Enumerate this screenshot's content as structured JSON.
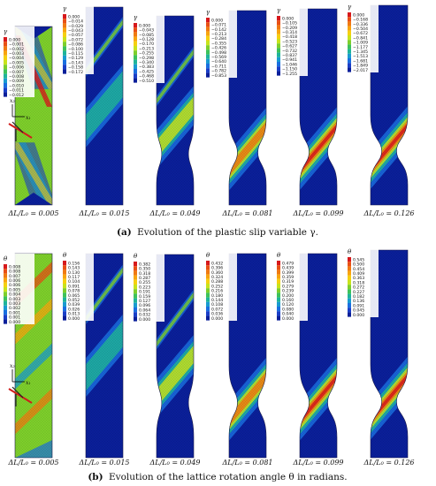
{
  "rows": [
    {
      "id": "a",
      "caption_prefix": "(a)",
      "caption_text": "Evolution of the plastic slip variable γ.",
      "var": "γ",
      "panels": [
        {
          "label": "ΔL/L₀ = 0.005",
          "legend": [
            "0.000",
            "−0.001",
            "−0.002",
            "−0.003",
            "−0.004",
            "−0.005",
            "−0.006",
            "−0.007",
            "−0.008",
            "−0.009",
            "−0.010",
            "−0.011",
            "−0.012"
          ]
        },
        {
          "label": "ΔL/L₀ = 0.015",
          "legend": [
            "0.000",
            "−0.014",
            "−0.029",
            "−0.043",
            "−0.057",
            "−0.072",
            "−0.086",
            "−0.100",
            "−0.115",
            "−0.129",
            "−0.143",
            "−0.158",
            "−0.172"
          ]
        },
        {
          "label": "ΔL/L₀ = 0.049",
          "legend": [
            "0.000",
            "−0.043",
            "−0.085",
            "−0.128",
            "−0.170",
            "−0.213",
            "−0.255",
            "−0.298",
            "−0.340",
            "−0.383",
            "−0.425",
            "−0.468",
            "−0.510"
          ]
        },
        {
          "label": "ΔL/L₀ = 0.081",
          "legend": [
            "0.000",
            "−0.071",
            "−0.142",
            "−0.213",
            "−0.284",
            "−0.355",
            "−0.426",
            "−0.498",
            "−0.569",
            "−0.640",
            "−0.711",
            "−0.782",
            "−0.853"
          ]
        },
        {
          "label": "ΔL/L₀ = 0.099",
          "legend": [
            "0.000",
            "−0.105",
            "−0.209",
            "−0.314",
            "−0.418",
            "−0.523",
            "−0.627",
            "−0.732",
            "−0.837",
            "−0.941",
            "−1.046",
            "−1.150",
            "−1.255"
          ]
        },
        {
          "label": "ΔL/L₀ = 0.126",
          "legend": [
            "0.000",
            "−0.168",
            "−0.336",
            "−0.504",
            "−0.672",
            "−0.841",
            "−1.009",
            "−1.177",
            "−1.345",
            "−1.513",
            "−1.681",
            "−1.849",
            "−2.017"
          ]
        }
      ]
    },
    {
      "id": "b",
      "caption_prefix": "(b)",
      "caption_text": "Evolution of the lattice rotation angle θ in radians.",
      "var": "θ",
      "panels": [
        {
          "label": "ΔL/L₀ = 0.005",
          "legend": [
            "0.008",
            "0.008",
            "0.007",
            "0.006",
            "0.006",
            "0.005",
            "0.004",
            "0.003",
            "0.003",
            "0.002",
            "0.001",
            "0.001",
            "0.000"
          ]
        },
        {
          "label": "ΔL/L₀ = 0.015",
          "legend": [
            "0.156",
            "0.143",
            "0.130",
            "0.117",
            "0.104",
            "0.091",
            "0.078",
            "0.065",
            "0.052",
            "0.039",
            "0.026",
            "0.013",
            "0.000"
          ]
        },
        {
          "label": "ΔL/L₀ = 0.049",
          "legend": [
            "0.382",
            "0.350",
            "0.318",
            "0.287",
            "0.255",
            "0.223",
            "0.191",
            "0.159",
            "0.127",
            "0.096",
            "0.064",
            "0.032",
            "0.000"
          ]
        },
        {
          "label": "ΔL/L₀ = 0.081",
          "legend": [
            "0.432",
            "0.396",
            "0.360",
            "0.324",
            "0.288",
            "0.252",
            "0.216",
            "0.180",
            "0.144",
            "0.108",
            "0.072",
            "0.036",
            "0.000"
          ]
        },
        {
          "label": "ΔL/L₀ = 0.099",
          "legend": [
            "0.479",
            "0.439",
            "0.399",
            "0.359",
            "0.319",
            "0.279",
            "0.239",
            "0.200",
            "0.160",
            "0.120",
            "0.080",
            "0.040",
            "0.000"
          ]
        },
        {
          "label": "ΔL/L₀ = 0.126",
          "legend": [
            "0.545",
            "0.500",
            "0.454",
            "0.409",
            "0.363",
            "0.318",
            "0.272",
            "0.227",
            "0.182",
            "0.136",
            "0.091",
            "0.045",
            "0.000"
          ]
        }
      ]
    }
  ],
  "axes": {
    "x": "x₁",
    "y": "x₂"
  },
  "palette": [
    "#d7191c",
    "#e85016",
    "#f07a12",
    "#f8a50e",
    "#f5d010",
    "#c8e31c",
    "#7ecf2b",
    "#3ec25a",
    "#1fb49a",
    "#1a9bd0",
    "#1a6fe0",
    "#1a3fc8",
    "#0a1f9a"
  ]
}
